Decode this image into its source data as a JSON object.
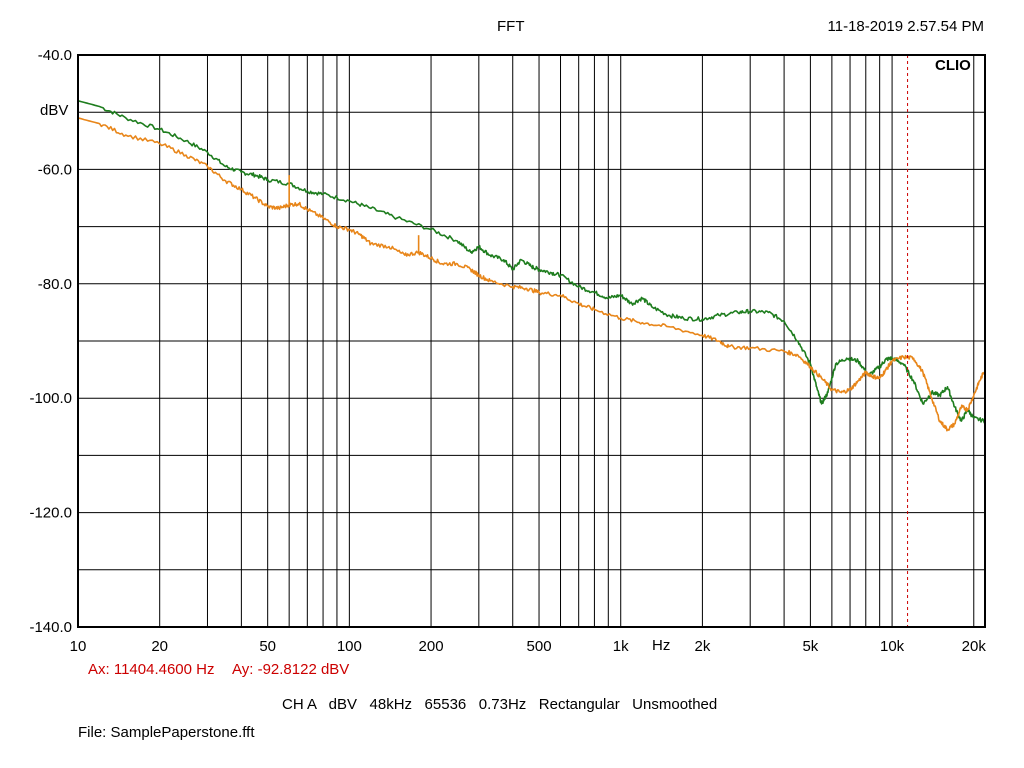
{
  "header": {
    "title": "FFT",
    "timestamp": "11-18-2019 2.57.54 PM",
    "brand": "CLIO"
  },
  "cursor": {
    "readout_x": "Ax: 11404.4600 Hz",
    "readout_y": "Ay: -92.8122 dBV",
    "x_hz": 11404.46,
    "y_db": -92.8122,
    "color": "#cc0000"
  },
  "footer": {
    "settings": "CH A   dBV   48kHz   65536   0.73Hz   Rectangular   Unsmoothed",
    "file": "File: SamplePaperstone.fft"
  },
  "chart_data": {
    "type": "line",
    "xscale": "log",
    "xlim": [
      10,
      22000
    ],
    "ylim": [
      -140,
      -40
    ],
    "xlabel": "Hz",
    "ylabel": "dBV",
    "grid": true,
    "x_ticks": [
      {
        "value": 10,
        "label": "10"
      },
      {
        "value": 20,
        "label": "20"
      },
      {
        "value": 50,
        "label": "50"
      },
      {
        "value": 100,
        "label": "100"
      },
      {
        "value": 200,
        "label": "200"
      },
      {
        "value": 500,
        "label": "500"
      },
      {
        "value": 1000,
        "label": "1k"
      },
      {
        "value": 2000,
        "label": "2k"
      },
      {
        "value": 5000,
        "label": "5k"
      },
      {
        "value": 10000,
        "label": "10k"
      },
      {
        "value": 20000,
        "label": "20k"
      }
    ],
    "y_ticks": [
      {
        "value": -40,
        "label": "-40.0"
      },
      {
        "value": -60,
        "label": "-60.0"
      },
      {
        "value": -80,
        "label": "-80.0"
      },
      {
        "value": -100,
        "label": "-100.0"
      },
      {
        "value": -120,
        "label": "-120.0"
      },
      {
        "value": -140,
        "label": "-140.0"
      }
    ],
    "series": [
      {
        "color": "#1e7d1e",
        "points": [
          [
            10,
            -48
          ],
          [
            12,
            -49
          ],
          [
            15,
            -51
          ],
          [
            20,
            -53
          ],
          [
            25,
            -55
          ],
          [
            30,
            -57
          ],
          [
            35,
            -59.5
          ],
          [
            40,
            -60.5
          ],
          [
            45,
            -61
          ],
          [
            50,
            -61.8
          ],
          [
            60,
            -62.5
          ],
          [
            70,
            -63.8
          ],
          [
            80,
            -64.3
          ],
          [
            100,
            -65.5
          ],
          [
            120,
            -66.8
          ],
          [
            150,
            -68.5
          ],
          [
            200,
            -70.5
          ],
          [
            250,
            -72.5
          ],
          [
            280,
            -74.5
          ],
          [
            300,
            -73.5
          ],
          [
            330,
            -75
          ],
          [
            370,
            -75.8
          ],
          [
            400,
            -77.5
          ],
          [
            430,
            -75.8
          ],
          [
            470,
            -77
          ],
          [
            500,
            -77.5
          ],
          [
            550,
            -78
          ],
          [
            600,
            -78.5
          ],
          [
            700,
            -80.5
          ],
          [
            800,
            -81.5
          ],
          [
            900,
            -82.5
          ],
          [
            1000,
            -82
          ],
          [
            1100,
            -83.5
          ],
          [
            1200,
            -82.5
          ],
          [
            1300,
            -84
          ],
          [
            1500,
            -85.5
          ],
          [
            1700,
            -86
          ],
          [
            2000,
            -86.2
          ],
          [
            2300,
            -85.5
          ],
          [
            2700,
            -85
          ],
          [
            3000,
            -84.8
          ],
          [
            3500,
            -85
          ],
          [
            4000,
            -86.5
          ],
          [
            4500,
            -90
          ],
          [
            5000,
            -94
          ],
          [
            5300,
            -98.5
          ],
          [
            5500,
            -101
          ],
          [
            5800,
            -99
          ],
          [
            6200,
            -94
          ],
          [
            6800,
            -93
          ],
          [
            7500,
            -93.5
          ],
          [
            8200,
            -96
          ],
          [
            9000,
            -94.5
          ],
          [
            9500,
            -93.2
          ],
          [
            10000,
            -93
          ],
          [
            11000,
            -94
          ],
          [
            12000,
            -97
          ],
          [
            13000,
            -101
          ],
          [
            14000,
            -99
          ],
          [
            15000,
            -99.5
          ],
          [
            16000,
            -98
          ],
          [
            17000,
            -101.5
          ],
          [
            18000,
            -104
          ],
          [
            19000,
            -102
          ],
          [
            20000,
            -103.5
          ],
          [
            22000,
            -104
          ]
        ]
      },
      {
        "color": "#e8861a",
        "points": [
          [
            10,
            -51
          ],
          [
            12,
            -52
          ],
          [
            15,
            -54
          ],
          [
            20,
            -55.5
          ],
          [
            25,
            -57.5
          ],
          [
            30,
            -59.5
          ],
          [
            35,
            -62
          ],
          [
            40,
            -63.5
          ],
          [
            45,
            -65
          ],
          [
            50,
            -66.5
          ],
          [
            55,
            -66.8
          ],
          [
            60,
            -66.2
          ],
          [
            65,
            -66
          ],
          [
            70,
            -67
          ],
          [
            80,
            -68.5
          ],
          [
            90,
            -70
          ],
          [
            100,
            -70.5
          ],
          [
            110,
            -71.5
          ],
          [
            120,
            -73
          ],
          [
            140,
            -73.5
          ],
          [
            160,
            -75
          ],
          [
            180,
            -74.5
          ],
          [
            200,
            -75.5
          ],
          [
            220,
            -76.5
          ],
          [
            250,
            -76.5
          ],
          [
            280,
            -77.5
          ],
          [
            300,
            -78.5
          ],
          [
            330,
            -79.5
          ],
          [
            400,
            -80.5
          ],
          [
            450,
            -80.8
          ],
          [
            500,
            -81.5
          ],
          [
            600,
            -82
          ],
          [
            700,
            -83.5
          ],
          [
            800,
            -84.5
          ],
          [
            1000,
            -86
          ],
          [
            1200,
            -86.8
          ],
          [
            1500,
            -87.5
          ],
          [
            2000,
            -89
          ],
          [
            2300,
            -90
          ],
          [
            2500,
            -91
          ],
          [
            3000,
            -91.2
          ],
          [
            4000,
            -91.8
          ],
          [
            4500,
            -92.5
          ],
          [
            5000,
            -94.5
          ],
          [
            5500,
            -96.5
          ],
          [
            6000,
            -98.5
          ],
          [
            6500,
            -99
          ],
          [
            7000,
            -98.5
          ],
          [
            7500,
            -97
          ],
          [
            8000,
            -95.5
          ],
          [
            8500,
            -96.2
          ],
          [
            9000,
            -96.5
          ],
          [
            9500,
            -95
          ],
          [
            10000,
            -93.5
          ],
          [
            11000,
            -92.8
          ],
          [
            12000,
            -93
          ],
          [
            13000,
            -95.5
          ],
          [
            14000,
            -100
          ],
          [
            15000,
            -104
          ],
          [
            16000,
            -105.5
          ],
          [
            17000,
            -104.5
          ],
          [
            18000,
            -101.5
          ],
          [
            19000,
            -102
          ],
          [
            20000,
            -99.5
          ],
          [
            21000,
            -97
          ],
          [
            22000,
            -95
          ]
        ]
      }
    ]
  }
}
